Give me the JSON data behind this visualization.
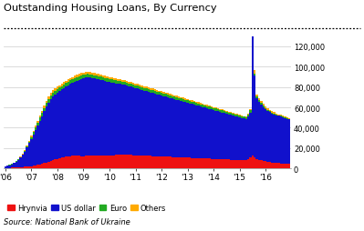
{
  "title": "Outstanding Housing Loans, By Currency",
  "source": "Source: National Bank of Ukraine",
  "colors": {
    "hryvnia": "#EE1111",
    "usdollar": "#1111CC",
    "euro": "#22AA22",
    "others": "#FFAA00"
  },
  "legend_labels": [
    "Hrynvia",
    "US dollar",
    "Euro",
    "Others"
  ],
  "yticks": [
    0,
    20000,
    40000,
    60000,
    80000,
    100000,
    120000
  ],
  "ytick_labels": [
    "0",
    "20,000",
    "40,000",
    "60,000",
    "80,000",
    "100,000",
    "120,000"
  ],
  "xtick_labels": [
    "'06",
    "'07",
    "'08",
    "'09",
    "'10",
    "'11",
    "'12",
    "'13",
    "'14",
    "'15",
    "'16"
  ],
  "months_per_year": 12,
  "monthly_data": {
    "hryvnia": [
      400,
      480,
      560,
      650,
      750,
      870,
      1000,
      1150,
      1300,
      1500,
      1700,
      1900,
      2200,
      2500,
      2900,
      3400,
      3900,
      4500,
      5200,
      5900,
      6600,
      7300,
      8000,
      8700,
      9400,
      10000,
      10600,
      11100,
      11500,
      11900,
      12200,
      12300,
      12400,
      12400,
      12300,
      12100,
      12200,
      12400,
      12600,
      12700,
      12800,
      12900,
      13000,
      13100,
      13100,
      13000,
      12900,
      12800,
      12900,
      13000,
      13100,
      13200,
      13300,
      13400,
      13500,
      13500,
      13400,
      13300,
      13200,
      13100,
      13000,
      12900,
      12800,
      12700,
      12600,
      12500,
      12400,
      12300,
      12200,
      12100,
      12000,
      11900,
      11800,
      11700,
      11600,
      11500,
      11400,
      11300,
      11200,
      11100,
      11000,
      10900,
      10800,
      10700,
      10600,
      10500,
      10400,
      10300,
      10200,
      10100,
      10000,
      9900,
      9800,
      9700,
      9600,
      9500,
      9400,
      9300,
      9200,
      9100,
      9000,
      8900,
      8800,
      8700,
      8600,
      8500,
      8400,
      8300,
      8200,
      8100,
      8000,
      7900,
      9000,
      11000,
      13000,
      11000,
      9000,
      8500,
      8000,
      7500,
      7000,
      6500,
      6200,
      5900,
      5600,
      5300,
      5100,
      4900,
      4700,
      4500,
      4300,
      4200
    ],
    "usdollar": [
      1500,
      2000,
      2700,
      3500,
      4500,
      5800,
      7500,
      9500,
      12000,
      15000,
      19000,
      23000,
      27000,
      31000,
      35000,
      39000,
      43000,
      47000,
      51000,
      55000,
      58000,
      61000,
      63000,
      64000,
      65000,
      66000,
      67000,
      68000,
      69000,
      70000,
      71000,
      72000,
      73000,
      74000,
      75000,
      76000,
      76500,
      77000,
      77000,
      76500,
      76000,
      75500,
      75000,
      74500,
      74000,
      73500,
      73000,
      72500,
      72000,
      71500,
      71000,
      70500,
      70000,
      69500,
      69000,
      68500,
      68000,
      67500,
      67000,
      66500,
      66000,
      65500,
      65000,
      64500,
      64000,
      63500,
      63000,
      62500,
      62000,
      61500,
      61000,
      60500,
      60000,
      59500,
      59000,
      58500,
      58000,
      57500,
      57000,
      56500,
      56000,
      55500,
      55000,
      54500,
      54000,
      53500,
      53000,
      52500,
      52000,
      51500,
      51000,
      50500,
      50000,
      49500,
      49000,
      48500,
      48000,
      47500,
      47000,
      46500,
      46000,
      45500,
      45000,
      44500,
      44000,
      43500,
      43000,
      42500,
      42000,
      41500,
      41000,
      40500,
      42000,
      44000,
      120000,
      80000,
      60000,
      57000,
      55000,
      53000,
      51000,
      50000,
      49000,
      48000,
      47500,
      47000,
      46500,
      46000,
      45500,
      45000,
      44500,
      44000
    ],
    "euro": [
      80,
      100,
      130,
      170,
      220,
      290,
      380,
      500,
      650,
      850,
      1100,
      1400,
      1700,
      2000,
      2300,
      2600,
      2900,
      3100,
      3200,
      3300,
      3350,
      3400,
      3430,
      3450,
      3450,
      3450,
      3440,
      3420,
      3400,
      3380,
      3360,
      3340,
      3320,
      3300,
      3280,
      3260,
      3240,
      3220,
      3200,
      3180,
      3160,
      3140,
      3120,
      3100,
      3080,
      3060,
      3040,
      3020,
      3000,
      2980,
      2960,
      2940,
      2920,
      2900,
      2880,
      2860,
      2840,
      2820,
      2800,
      2780,
      2760,
      2740,
      2720,
      2700,
      2680,
      2660,
      2640,
      2620,
      2600,
      2580,
      2560,
      2540,
      2520,
      2500,
      2480,
      2460,
      2440,
      2420,
      2400,
      2380,
      2360,
      2340,
      2320,
      2300,
      2280,
      2260,
      2240,
      2220,
      2200,
      2180,
      2160,
      2140,
      2120,
      2100,
      2080,
      2060,
      2040,
      2020,
      2000,
      1980,
      1960,
      1940,
      1920,
      1900,
      1880,
      1860,
      1840,
      1820,
      1800,
      1780,
      1760,
      1740,
      1800,
      2000,
      2500,
      2000,
      1500,
      1400,
      1300,
      1200,
      1100,
      1000,
      950,
      900,
      850,
      800,
      750,
      700,
      650,
      600,
      550,
      500
    ],
    "others": [
      40,
      55,
      70,
      90,
      120,
      160,
      210,
      280,
      370,
      490,
      640,
      830,
      1050,
      1300,
      1550,
      1800,
      2000,
      2150,
      2250,
      2350,
      2400,
      2430,
      2450,
      2460,
      2460,
      2460,
      2450,
      2440,
      2420,
      2400,
      2380,
      2360,
      2340,
      2320,
      2300,
      2280,
      2260,
      2240,
      2220,
      2200,
      2180,
      2160,
      2140,
      2120,
      2100,
      2080,
      2060,
      2040,
      2020,
      2000,
      1980,
      1960,
      1940,
      1920,
      1900,
      1880,
      1860,
      1840,
      1820,
      1800,
      1780,
      1760,
      1740,
      1720,
      1700,
      1680,
      1660,
      1640,
      1620,
      1600,
      1580,
      1560,
      1540,
      1520,
      1500,
      1480,
      1460,
      1440,
      1420,
      1400,
      1380,
      1360,
      1340,
      1320,
      1300,
      1280,
      1260,
      1240,
      1220,
      1200,
      1180,
      1160,
      1140,
      1120,
      1100,
      1080,
      1060,
      1040,
      1020,
      1000,
      980,
      960,
      940,
      920,
      900,
      880,
      860,
      840,
      820,
      800,
      780,
      760,
      900,
      1200,
      4500,
      3500,
      2500,
      2200,
      2000,
      1800,
      1600,
      1500,
      1400,
      1300,
      1200,
      1100,
      1000,
      900,
      800,
      700,
      600,
      500
    ]
  }
}
